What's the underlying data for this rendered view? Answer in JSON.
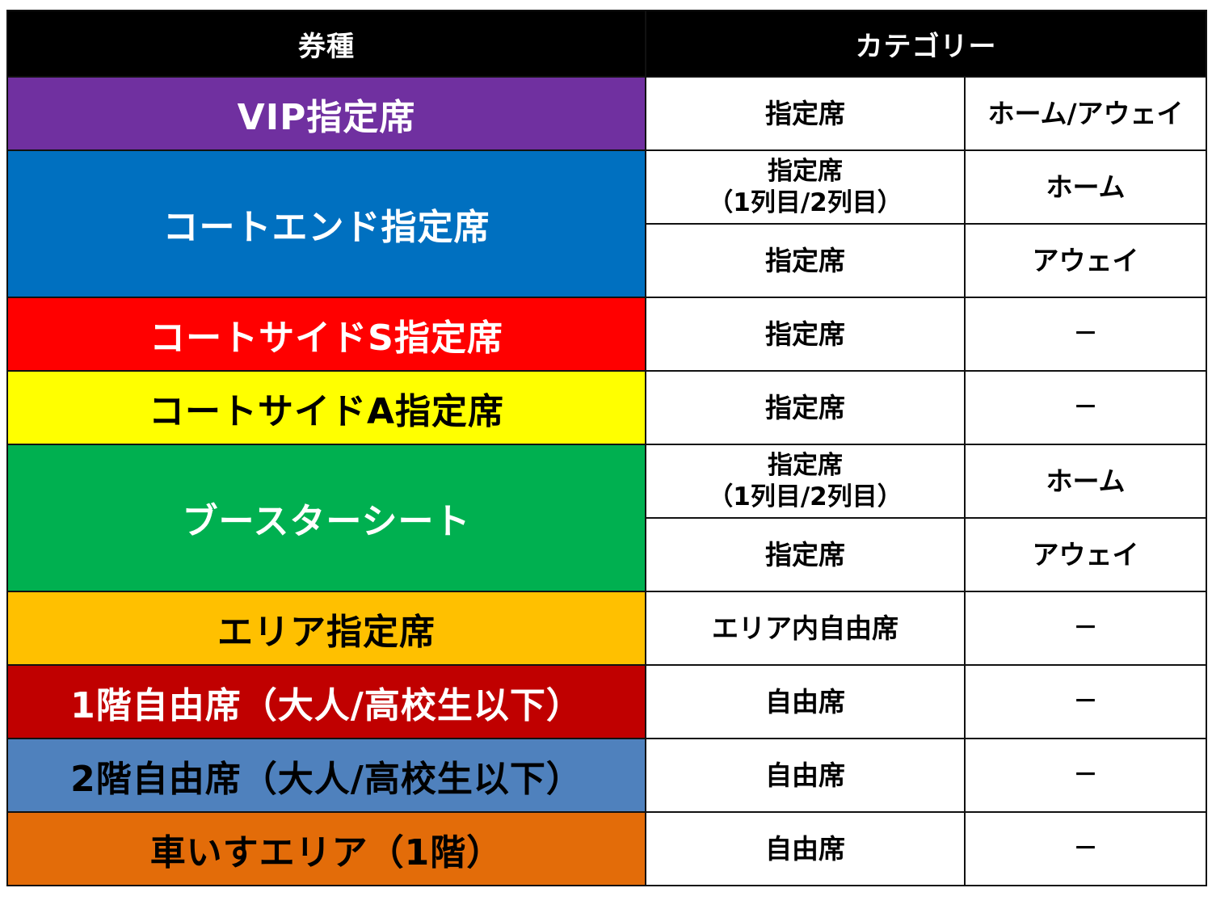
{
  "headers": {
    "ticket_type": "券種",
    "category": "カテゴリー"
  },
  "rows": [
    {
      "type": "VIP指定席",
      "bg": "#7030A0",
      "fg": "#ffffff",
      "subs": [
        {
          "seat": "指定席",
          "side": "ホーム/アウェイ"
        }
      ]
    },
    {
      "type": "コートエンド指定席",
      "bg": "#0070C0",
      "fg": "#ffffff",
      "subs": [
        {
          "seat": "指定席\n（1列目/2列目）",
          "side": "ホーム"
        },
        {
          "seat": "指定席",
          "side": "アウェイ"
        }
      ]
    },
    {
      "type": "コートサイドS指定席",
      "bg": "#FF0000",
      "fg": "#ffffff",
      "subs": [
        {
          "seat": "指定席",
          "side": "－"
        }
      ]
    },
    {
      "type": "コートサイドA指定席",
      "bg": "#FFFF00",
      "fg": "#000000",
      "subs": [
        {
          "seat": "指定席",
          "side": "－"
        }
      ]
    },
    {
      "type": "ブースターシート",
      "bg": "#00B050",
      "fg": "#ffffff",
      "subs": [
        {
          "seat": "指定席\n（1列目/2列目）",
          "side": "ホーム"
        },
        {
          "seat": "指定席",
          "side": "アウェイ"
        }
      ]
    },
    {
      "type": "エリア指定席",
      "bg": "#FFC000",
      "fg": "#000000",
      "subs": [
        {
          "seat": "エリア内自由席",
          "side": "－"
        }
      ]
    },
    {
      "type": "1階自由席（大人/高校生以下）",
      "bg": "#C00000",
      "fg": "#ffffff",
      "subs": [
        {
          "seat": "自由席",
          "side": "－"
        }
      ]
    },
    {
      "type": "2階自由席（大人/高校生以下）",
      "bg": "#4F81BD",
      "fg": "#000000",
      "subs": [
        {
          "seat": "自由席",
          "side": "－"
        }
      ]
    },
    {
      "type": "車いすエリア（1階）",
      "bg": "#E36C09",
      "fg": "#000000",
      "subs": [
        {
          "seat": "自由席",
          "side": "－"
        }
      ]
    }
  ]
}
